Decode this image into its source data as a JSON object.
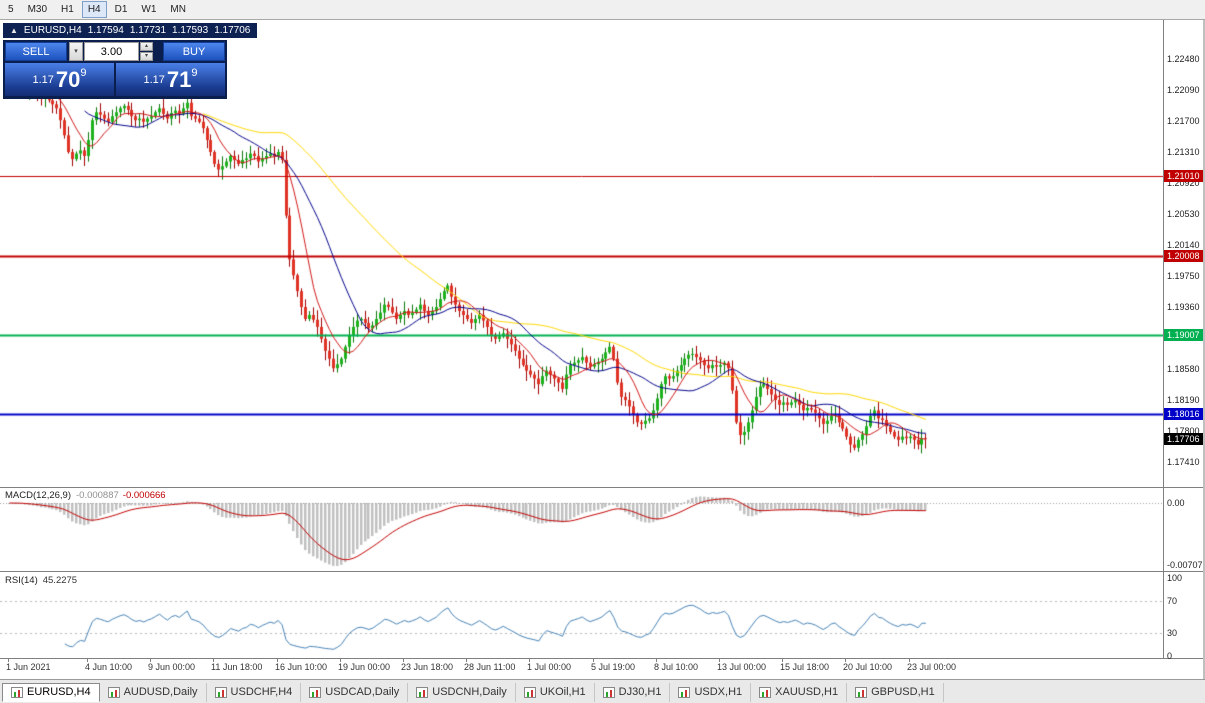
{
  "toolbar": {
    "periods": [
      {
        "label": "5",
        "active": false
      },
      {
        "label": "M30",
        "active": false
      },
      {
        "label": "H1",
        "active": false
      },
      {
        "label": "H4",
        "active": true
      },
      {
        "label": "D1",
        "active": false
      },
      {
        "label": "W1",
        "active": false
      },
      {
        "label": "MN",
        "active": false
      }
    ]
  },
  "chart": {
    "ohlc_bar": {
      "collapse_icon": "▲",
      "symbol_period": "EURUSD,H4",
      "open": "1.17594",
      "high": "1.17731",
      "low": "1.17593",
      "close": "1.17706"
    },
    "trade_panel": {
      "sell_label": "SELL",
      "buy_label": "BUY",
      "volume": "3.00",
      "dropdown_icon": "▾",
      "spin_up_icon": "▴",
      "spin_down_icon": "▾",
      "price_prefix": "1.17",
      "sell_big": "70",
      "sell_sup": "9",
      "buy_big": "71",
      "buy_sup": "9"
    }
  },
  "macd": {
    "label": "MACD(12,26,9)",
    "value_main": "-0.000887",
    "value_signal": "-0.000666",
    "axis_zero": "0.00",
    "axis_min": "-0.00707"
  },
  "rsi": {
    "label": "RSI(14)",
    "value": "45.2275",
    "axis": [
      "100",
      "70",
      "30",
      "0"
    ]
  },
  "tabs": [
    {
      "label": "EURUSD,H4",
      "active": true
    },
    {
      "label": "AUDUSD,Daily",
      "active": false
    },
    {
      "label": "USDCHF,H4",
      "active": false
    },
    {
      "label": "USDCAD,Daily",
      "active": false
    },
    {
      "label": "USDCNH,Daily",
      "active": false
    },
    {
      "label": "UKOil,H1",
      "active": false
    },
    {
      "label": "DJ30,H1",
      "active": false
    },
    {
      "label": "USDX,H1",
      "active": false
    },
    {
      "label": "XAUUSD,H1",
      "active": false
    },
    {
      "label": "GBPUSD,H1",
      "active": false
    }
  ],
  "chart_data": {
    "type": "candlestick",
    "symbol": "EURUSD",
    "period": "H4",
    "title": "EURUSD,H4",
    "y_axis": {
      "labels": [
        "1.22480",
        "1.22090",
        "1.21700",
        "1.21310",
        "1.20920",
        "1.20530",
        "1.20140",
        "1.19750",
        "1.19360",
        "1.18970",
        "1.18580",
        "1.18190",
        "1.17800",
        "1.17410"
      ]
    },
    "price_tags": [
      {
        "text": "1.21010",
        "color": "#C00000",
        "line": true,
        "width": 1
      },
      {
        "text": "1.20008",
        "color": "#C00000",
        "line": true,
        "width": 2
      },
      {
        "text": "1.19007",
        "color": "#00B050",
        "line": true,
        "width": 2
      },
      {
        "text": "1.18016",
        "color": "#0000C8",
        "line": true,
        "width": 2
      },
      {
        "text": "1.17706",
        "color": "#000000",
        "line": false,
        "width": 1
      }
    ],
    "x_labels": [
      {
        "text": "1 Jun 2021",
        "i": 0
      },
      {
        "text": "4 Jun 10:00",
        "i": 20
      },
      {
        "text": "9 Jun 00:00",
        "i": 36
      },
      {
        "text": "11 Jun 18:00",
        "i": 52
      },
      {
        "text": "16 Jun 10:00",
        "i": 68
      },
      {
        "text": "19 Jun 00:00",
        "i": 84
      },
      {
        "text": "23 Jun 18:00",
        "i": 100
      },
      {
        "text": "28 Jun 11:00",
        "i": 116
      },
      {
        "text": "1 Jul 00:00",
        "i": 132
      },
      {
        "text": "5 Jul 19:00",
        "i": 148
      },
      {
        "text": "8 Jul 10:00",
        "i": 164
      },
      {
        "text": "13 Jul 00:00",
        "i": 180
      },
      {
        "text": "15 Jul 18:00",
        "i": 196
      },
      {
        "text": "20 Jul 10:00",
        "i": 212
      },
      {
        "text": "23 Jul 00:00",
        "i": 228
      }
    ],
    "moving_averages": [
      {
        "period": 8,
        "color": "#D01818"
      },
      {
        "period": 20,
        "color": "#00008B"
      },
      {
        "period": 50,
        "color": "#FFD700"
      }
    ],
    "macd_config": {
      "fast": 12,
      "slow": 26,
      "signal": 9,
      "histogram_color": "#C0C0C0",
      "signal_color": "#C00000"
    },
    "rsi_config": {
      "period": 14,
      "color": "#4682B4",
      "levels": [
        70,
        30
      ]
    },
    "candle_colors": {
      "up": "#1CB21C",
      "down": "#E03224",
      "up_wick": "#0A7A0A",
      "down_wick": "#A00000"
    },
    "current_price": 1.17706,
    "closes": [
      1.2223,
      1.2218,
      1.2225,
      1.2215,
      1.2208,
      1.2212,
      1.221,
      1.2205,
      1.2198,
      1.2203,
      1.2196,
      1.2191,
      1.2186,
      1.2171,
      1.2152,
      1.2131,
      1.2122,
      1.2129,
      1.2133,
      1.2126,
      1.2146,
      1.2171,
      1.2181,
      1.2178,
      1.2173,
      1.2169,
      1.2176,
      1.2181,
      1.2186,
      1.2189,
      1.2184,
      1.2176,
      1.2171,
      1.2173,
      1.2169,
      1.2173,
      1.2176,
      1.2181,
      1.2186,
      1.2179,
      1.2173,
      1.218,
      1.2183,
      1.2179,
      1.2186,
      1.2193,
      1.2176,
      1.2173,
      1.2169,
      1.2161,
      1.2146,
      1.2131,
      1.2116,
      1.2109,
      1.2113,
      1.2119,
      1.2126,
      1.2121,
      1.2116,
      1.2121,
      1.2123,
      1.2129,
      1.2126,
      1.2119,
      1.2123,
      1.2126,
      1.2129,
      1.2126,
      1.2131,
      1.2121,
      1.2051,
      1.1996,
      1.1976,
      1.1956,
      1.1936,
      1.1921,
      1.1926,
      1.192,
      1.1911,
      1.1896,
      1.1881,
      1.1871,
      1.1859,
      1.1864,
      1.1871,
      1.1886,
      1.1901,
      1.1911,
      1.1919,
      1.1921,
      1.1916,
      1.1909,
      1.1913,
      1.1921,
      1.1929,
      1.1939,
      1.1936,
      1.1929,
      1.1921,
      1.1926,
      1.1931,
      1.1926,
      1.1929,
      1.1933,
      1.1939,
      1.1931,
      1.1926,
      1.1931,
      1.1936,
      1.1946,
      1.1956,
      1.1963,
      1.1949,
      1.1939,
      1.1931,
      1.1926,
      1.1921,
      1.1916,
      1.1921,
      1.1926,
      1.1919,
      1.1911,
      1.1901,
      1.1896,
      1.1899,
      1.1903,
      1.1896,
      1.1889,
      1.1881,
      1.1871,
      1.1863,
      1.1856,
      1.1851,
      1.1846,
      1.1839,
      1.1849,
      1.1856,
      1.1851,
      1.1846,
      1.1841,
      1.1833,
      1.1851,
      1.1863,
      1.1866,
      1.1869,
      1.1873,
      1.1866,
      1.1861,
      1.1864,
      1.1867,
      1.1871,
      1.1879,
      1.1886,
      1.1871,
      1.1841,
      1.1823,
      1.1819,
      1.1811,
      1.1801,
      1.1791,
      1.1789,
      1.1793,
      1.1796,
      1.1806,
      1.1821,
      1.1839,
      1.1849,
      1.1846,
      1.1849,
      1.1856,
      1.1863,
      1.1871,
      1.1876,
      1.1877,
      1.1873,
      1.1869,
      1.1863,
      1.1859,
      1.1863,
      1.1861,
      1.1863,
      1.1866,
      1.1859,
      1.1831,
      1.1791,
      1.1775,
      1.1779,
      1.1791,
      1.1806,
      1.1823,
      1.1836,
      1.1839,
      1.1833,
      1.1826,
      1.1819,
      1.1813,
      1.1816,
      1.1813,
      1.1816,
      1.1819,
      1.1813,
      1.1806,
      1.1809,
      1.1807,
      1.1803,
      1.1796,
      1.1789,
      1.1793,
      1.1799,
      1.1801,
      1.1791,
      1.1783,
      1.1773,
      1.1763,
      1.1759,
      1.1769,
      1.1776,
      1.1786,
      1.1799,
      1.1806,
      1.1796,
      1.1794,
      1.1786,
      1.1779,
      1.1773,
      1.1769,
      1.1773,
      1.1771,
      1.1773,
      1.1769,
      1.1763,
      1.1771,
      1.17706
    ]
  }
}
